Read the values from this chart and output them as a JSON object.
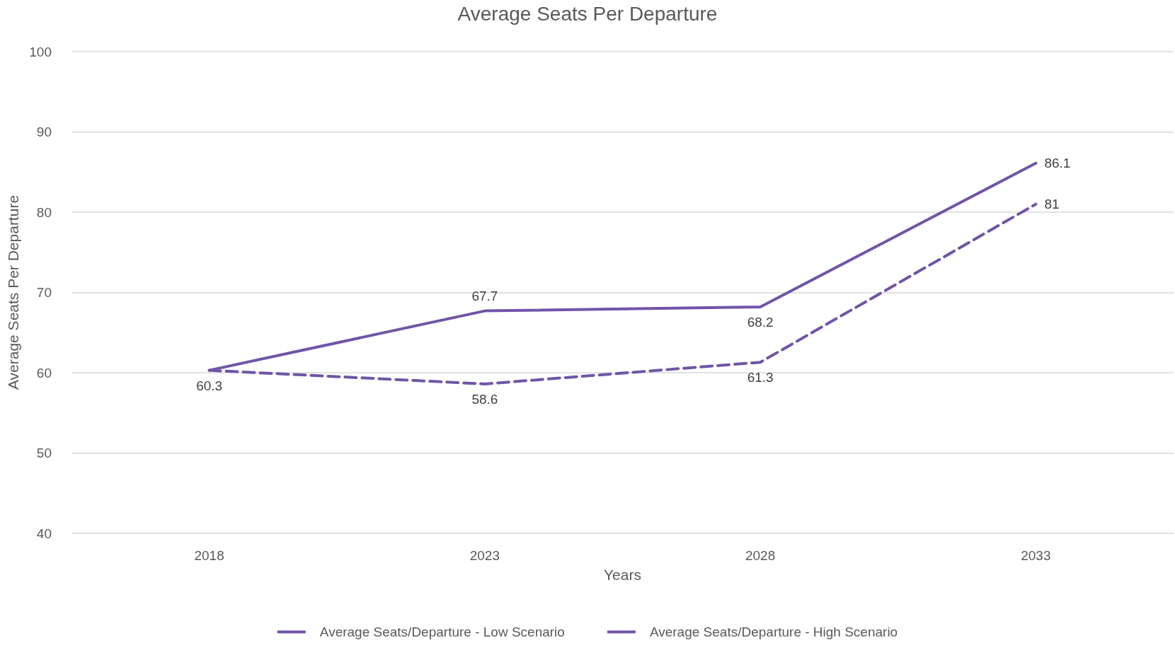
{
  "chart_data": {
    "type": "line",
    "title": "Average Seats Per Departure",
    "xlabel": "Years",
    "ylabel": "Average Seats Per Departure",
    "categories": [
      "2018",
      "2023",
      "2028",
      "2033"
    ],
    "series": [
      {
        "name": "Average Seats/Departure - Low Scenario",
        "color": "#7155a8",
        "line_style": "dashed",
        "values": [
          60.3,
          58.6,
          61.3,
          81
        ],
        "value_labels": [
          "60.3",
          "58.6",
          "61.3",
          "81"
        ]
      },
      {
        "name": "Average Seats/Departure - High Scenario",
        "color": "#7155a8",
        "line_style": "solid",
        "values": [
          60.3,
          67.7,
          68.2,
          86.1
        ],
        "value_labels": [
          null,
          "67.7",
          "68.2",
          "86.1"
        ]
      }
    ],
    "ylim": [
      40,
      100
    ],
    "yticks": [
      40,
      50,
      60,
      70,
      80,
      90,
      100
    ],
    "grid": "y",
    "legend": "bottom",
    "marker": "none"
  }
}
